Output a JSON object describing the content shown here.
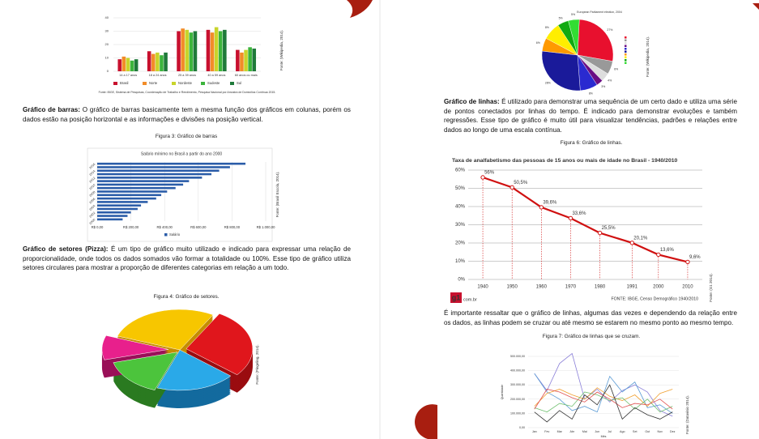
{
  "page_left": {
    "bar_chart": {
      "type": "bar",
      "categories": [
        "14 a 17 anos",
        "18 a 24 anos",
        "25 a 39 anos",
        "40 a 59 anos",
        "60 anos ou mais"
      ],
      "series": [
        {
          "name": "Brasil",
          "color": "#c8102e",
          "values": [
            9,
            15,
            30,
            31,
            16
          ]
        },
        {
          "name": "Norte",
          "color": "#f28c28",
          "values": [
            11,
            13,
            32,
            29,
            14
          ]
        },
        {
          "name": "Nordeste",
          "color": "#c8d42a",
          "values": [
            10,
            14,
            31,
            33,
            16
          ]
        },
        {
          "name": "Sudeste",
          "color": "#3cb43c",
          "values": [
            8,
            12,
            29,
            30,
            18
          ]
        },
        {
          "name": "Sul",
          "color": "#1f7a3a",
          "values": [
            9,
            14,
            30,
            31,
            17
          ]
        }
      ],
      "ylim": [
        0,
        40
      ],
      "yticks": [
        0,
        10,
        20,
        30,
        40
      ],
      "grid": true,
      "note": "Fonte: IBGE, Sistema de Pesquisas, Coordenação de Trabalho e Rendimento, Pesquisa Nacional por Amostra de Domicílios Contínua 2015.",
      "source": "Fonte: (Wikipedia, 2014)."
    },
    "text_1": {
      "lead": "Gráfico de barras:",
      "body": " O gráfico de barras basicamente tem a mesma função dos gráficos em colunas, porém os dados estão na posição horizontal e as informações e divisões na posição vertical."
    },
    "caption_3": "Figura 3: Gráfico de barras",
    "hbar_chart": {
      "type": "hbar",
      "title": "Salário mínimo no Brasil a partir do ano 2000",
      "categories": [
        "2000",
        null,
        "2002",
        null,
        "2004",
        null,
        "2006",
        null,
        "2008",
        null,
        "2010",
        null,
        "2012",
        null,
        "2014",
        null,
        "2016"
      ],
      "series": [
        {
          "name": "Salário",
          "color": "#2a5ca8",
          "values": [
            151,
            180,
            200,
            240,
            260,
            300,
            350,
            380,
            415,
            465,
            510,
            545,
            622,
            678,
            724,
            788,
            880
          ]
        }
      ],
      "xlim": [
        0,
        1000
      ],
      "xticks": [
        {
          "value": 0,
          "label": "R$ 0,00"
        },
        {
          "value": 200,
          "label": "R$ 200,00"
        },
        {
          "value": 400,
          "label": "R$ 400,00"
        },
        {
          "value": 600,
          "label": "R$ 600,00"
        },
        {
          "value": 800,
          "label": "R$ 800,00"
        },
        {
          "value": 1000,
          "label": "R$ 1.000,00"
        }
      ],
      "grid": true,
      "source": "Fonte: (Brasil Escola, 2014)."
    },
    "text_2": {
      "lead": "Gráfico de setores (Pizza):",
      "body": " É um tipo de gráfico muito utilizado e indicado para expressar uma relação de proporcionalidade, onde todos os dados somados vão formar a totalidade ou 100%. Esse tipo de gráfico utiliza setores circulares para mostrar a proporção de diferentes categorias em relação a um todo."
    },
    "caption_4": "Figura 4: Gráfico de setores.",
    "pie_3d_source": "Fonte: (Pingeling, 2014)."
  },
  "page_right": {
    "pie_chart": {
      "type": "pie",
      "title": "European Parliament election, 2004",
      "values": [
        27,
        6,
        4,
        3,
        8,
        28,
        6,
        8,
        5,
        5
      ],
      "value_labels": [
        "27%",
        "6%",
        "4%",
        "3%",
        "8%",
        "28%",
        "6%",
        "8%",
        "5%",
        "5%"
      ],
      "colors": [
        "#e8102e",
        "#999999",
        "#dddddd",
        "#6a0d83",
        "#2a2ad0",
        "#1a1a9a",
        "#ff9900",
        "#ffee00",
        "#11aa11",
        "#33dd33"
      ],
      "source": "Fonte: (Wikipedia, 2014)."
    },
    "text_3": {
      "lead": "Gráfico de linhas:",
      "body": " É utilizado para demonstrar uma sequência de um certo dado e utiliza uma série de pontos conectados por linhas do tempo. É indicado para demonstrar evoluções e também regressões. Esse tipo de gráfico é muito  útil para visualizar tendências, padrões e relações entre dados ao longo de uma escala contínua."
    },
    "caption_6": "Figura 6: Gráfico de linhas.",
    "line_chart": {
      "type": "line",
      "title": "Taxa de analfabetismo das pessoas de 15 anos ou mais de idade no Brasil - 1940/2010",
      "x": [
        1940,
        1950,
        1960,
        1970,
        1980,
        1991,
        2000,
        2010
      ],
      "series": [
        {
          "name": "Taxa",
          "color": "#d01010",
          "values": [
            56,
            50.5,
            39.6,
            33.6,
            25.5,
            20.1,
            13.6,
            9.6
          ],
          "value_labels": [
            "56%",
            "50,5%",
            "39,6%",
            "33,6%",
            "25,5%",
            "20,1%",
            "13,6%",
            "9,6%"
          ]
        }
      ],
      "xlim": [
        1935,
        2015
      ],
      "xticks": [
        1940,
        1950,
        1960,
        1970,
        1980,
        1991,
        2000,
        2010
      ],
      "ylim": [
        0,
        60
      ],
      "yticks": [
        {
          "value": 0,
          "label": "0%"
        },
        {
          "value": 10,
          "label": "10%"
        },
        {
          "value": 20,
          "label": "20%"
        },
        {
          "value": 30,
          "label": "30%"
        },
        {
          "value": 40,
          "label": "40%"
        },
        {
          "value": 50,
          "label": "50%"
        },
        {
          "value": 60,
          "label": "60%"
        }
      ],
      "grid": true,
      "footer": "FONTE: IBGE, Censo Demográfico 1940/2010",
      "logo": "g1",
      "logo_suffix": "com.br",
      "source": "Fonte: (G1 2014)."
    },
    "text_4": "É importante ressaltar que o gráfico de linhas, algumas das vezes e dependendo da relação entre os dados, as linhas podem se cruzar ou até mesmo se estarem no mesmo ponto ao mesmo tempo.",
    "caption_7": "Figura 7: Gráfico de linhas que se cruzam.",
    "multi_line_chart": {
      "type": "line",
      "categories": [
        "Jan",
        "Fev",
        "Mar",
        "Abr",
        "Mai",
        "Jun",
        "Jul",
        "Ago",
        "Set",
        "Out",
        "Nov",
        "Dez"
      ],
      "series": [
        {
          "color": "#8a7fd8",
          "values": [
            380000,
            260000,
            450000,
            520000,
            200000,
            270000,
            180000,
            260000,
            300000,
            250000,
            120000,
            80000
          ]
        },
        {
          "color": "#5b9bd5",
          "values": [
            380000,
            250000,
            200000,
            120000,
            150000,
            110000,
            360000,
            250000,
            320000,
            140000,
            160000,
            100000
          ]
        },
        {
          "color": "#f0a030",
          "values": [
            150000,
            240000,
            270000,
            230000,
            200000,
            280000,
            220000,
            190000,
            230000,
            150000,
            240000,
            270000
          ]
        },
        {
          "color": "#70c070",
          "values": [
            140000,
            110000,
            170000,
            150000,
            250000,
            230000,
            190000,
            210000,
            130000,
            200000,
            110000,
            150000
          ]
        },
        {
          "color": "#e05050",
          "values": [
            130000,
            270000,
            250000,
            210000,
            180000,
            250000,
            200000,
            140000,
            170000,
            160000,
            200000,
            130000
          ]
        },
        {
          "color": "#333333",
          "values": [
            110000,
            40000,
            120000,
            60000,
            230000,
            160000,
            300000,
            60000,
            140000,
            90000,
            60000,
            110000
          ]
        }
      ],
      "ylim": [
        0,
        500000
      ],
      "yticks": [
        {
          "value": 0,
          "label": "0,00"
        },
        {
          "value": 100000,
          "label": "100.000,00"
        },
        {
          "value": 200000,
          "label": "200.000,00"
        },
        {
          "value": 300000,
          "label": "300.000,00"
        },
        {
          "value": 400000,
          "label": "400.000,00"
        },
        {
          "value": 500000,
          "label": "500.000,00"
        }
      ],
      "grid": true,
      "ylabel": "Quantidade",
      "xlabel": "Mês",
      "source": "Fonte: (Datavisio 2014)."
    }
  }
}
